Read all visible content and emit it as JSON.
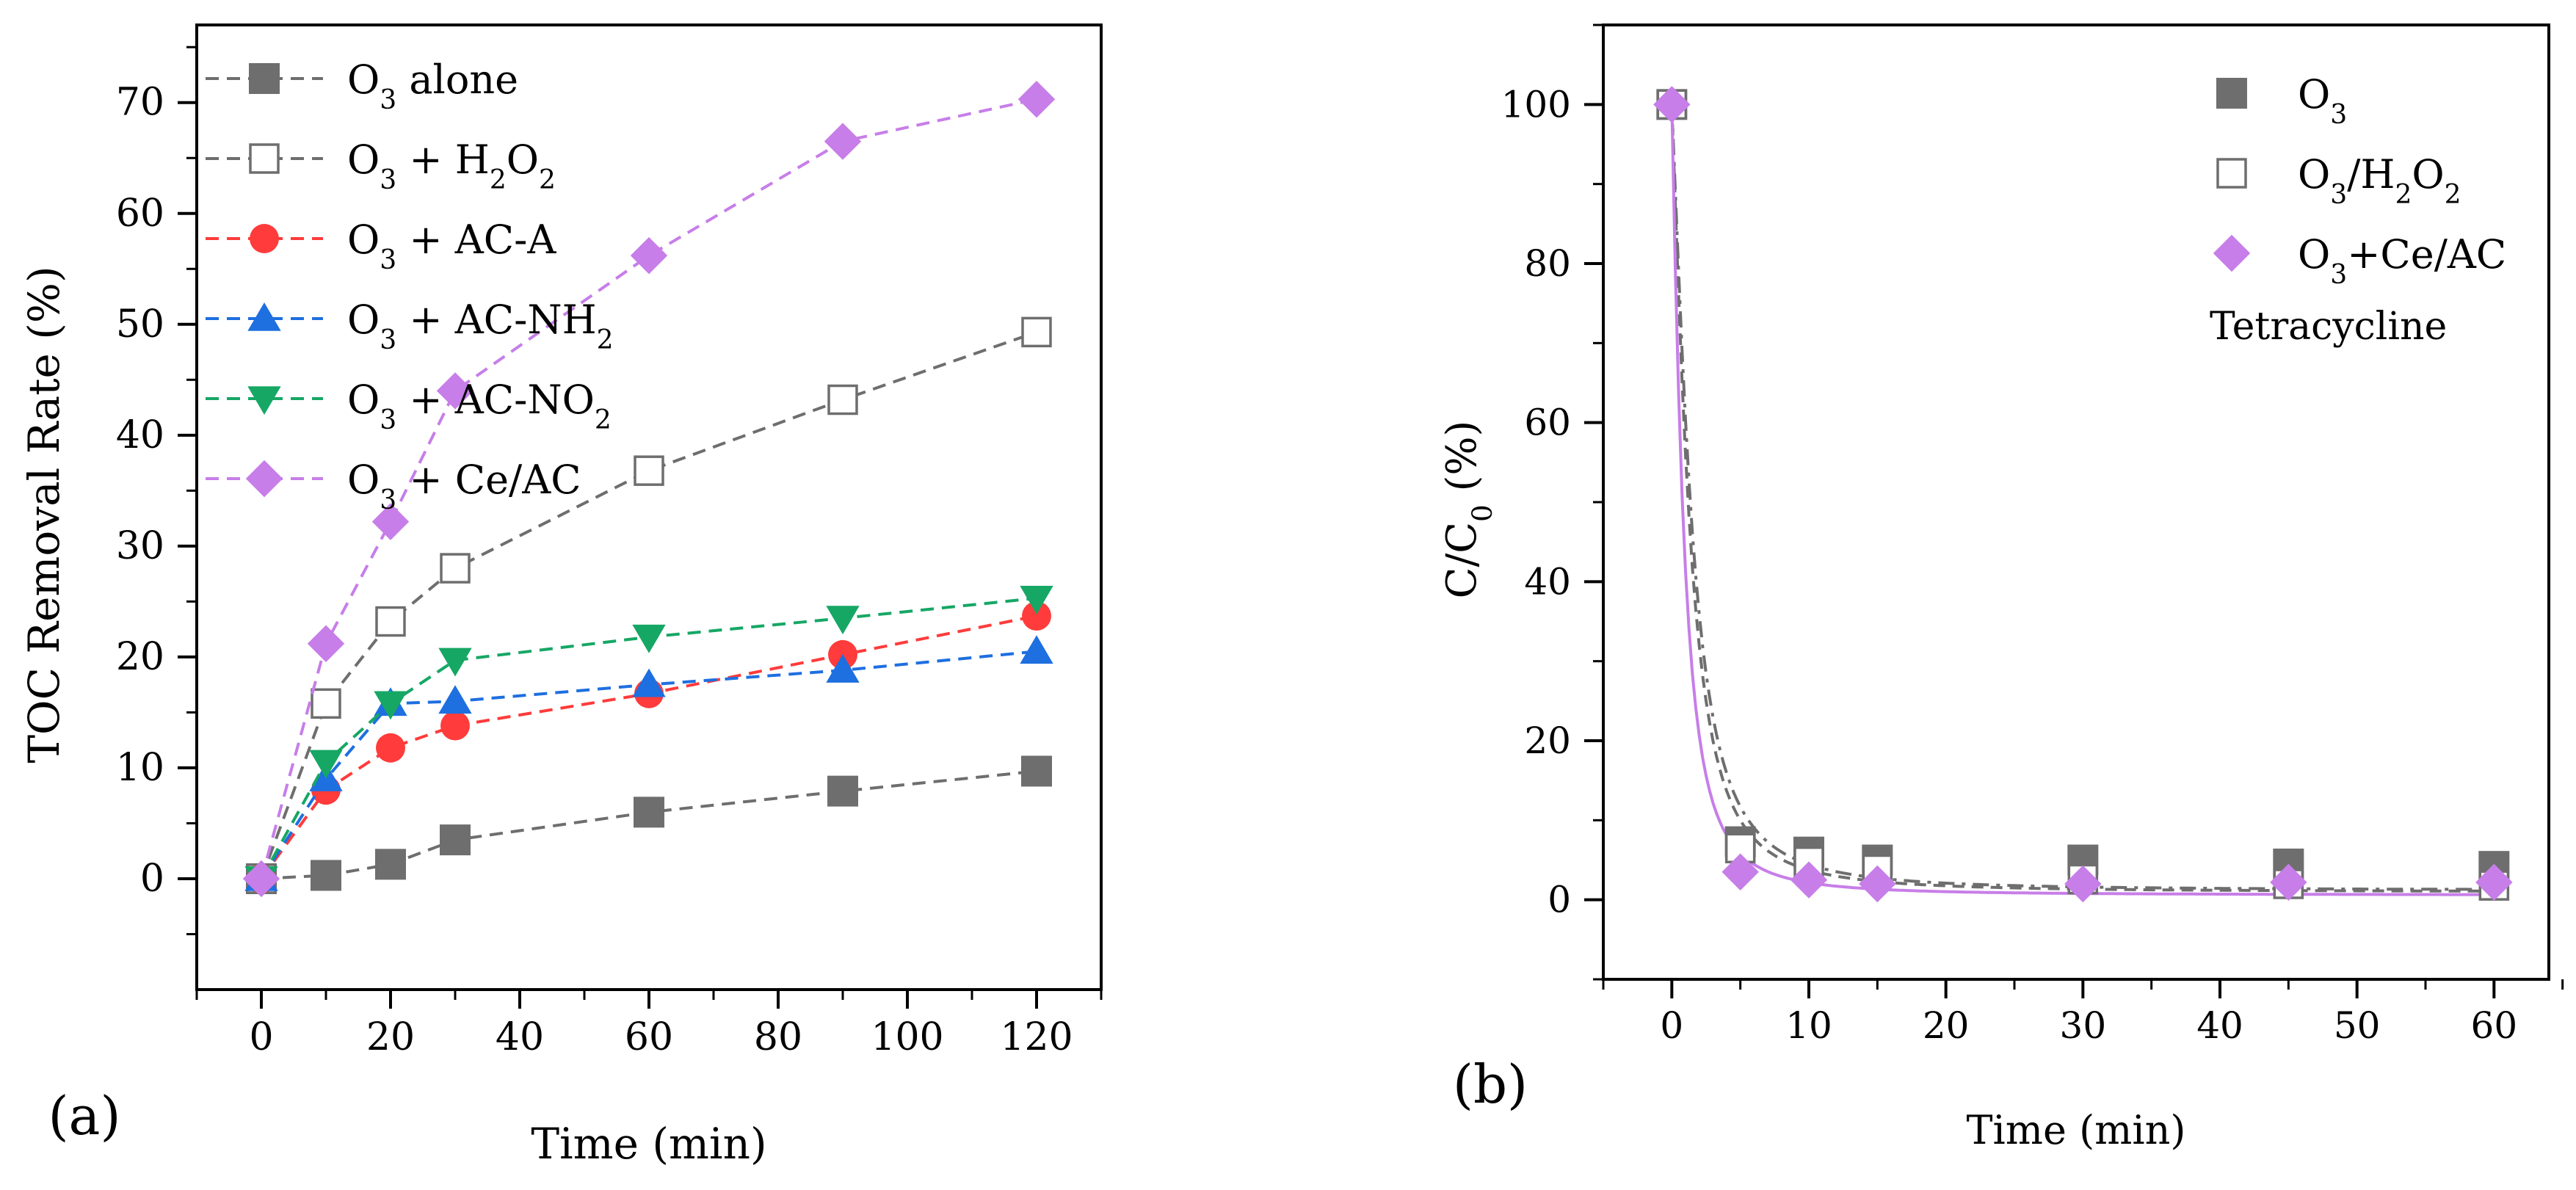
{
  "chart_data": [
    {
      "type": "line",
      "panel_label": "(a)",
      "xlabel": "Time (min)",
      "ylabel": "TOC Removal Rate (%)",
      "xlim": [
        -10,
        130
      ],
      "ylim": [
        -10,
        77
      ],
      "xticks": [
        0,
        20,
        40,
        60,
        80,
        100,
        120
      ],
      "yticks": [
        0,
        10,
        20,
        30,
        40,
        50,
        60,
        70
      ],
      "legend_position": "top-left",
      "series": [
        {
          "name": "O₃ alone",
          "name_main": "O",
          "name_sub": "3",
          "name_rest": " alone",
          "name_sub2": "",
          "name_rest2": "",
          "color": "#6e6e6e",
          "marker": "square-filled",
          "x": [
            0,
            10,
            20,
            30,
            60,
            90,
            120
          ],
          "y": [
            0,
            0.3,
            1.3,
            3.5,
            6.0,
            7.9,
            9.7
          ]
        },
        {
          "name": "O₃ + H₂O₂",
          "name_main": "O",
          "name_sub": "3",
          "name_rest": " + H",
          "name_sub2": "2",
          "name_rest2": "O",
          "name_sub3": "2",
          "color": "#6e6e6e",
          "marker": "square-open",
          "x": [
            0,
            10,
            20,
            30,
            60,
            90,
            120
          ],
          "y": [
            0,
            15.8,
            23.2,
            28.0,
            36.8,
            43.2,
            49.3
          ]
        },
        {
          "name": "O₃ + AC-A",
          "name_main": "O",
          "name_sub": "3",
          "name_rest": " + AC-A",
          "name_sub2": "",
          "name_rest2": "",
          "color": "#ff3b3b",
          "marker": "circle",
          "x": [
            0,
            10,
            20,
            30,
            60,
            90,
            120
          ],
          "y": [
            0,
            8.0,
            11.8,
            13.8,
            16.7,
            20.2,
            23.7
          ]
        },
        {
          "name": "O₃ + AC-NH₂",
          "name_main": "O",
          "name_sub": "3",
          "name_rest": " + AC-NH",
          "name_sub2": "2",
          "name_rest2": "",
          "color": "#1e6fe0",
          "marker": "triangle-up",
          "x": [
            0,
            10,
            20,
            30,
            60,
            90,
            120
          ],
          "y": [
            0,
            9.0,
            15.8,
            16.0,
            17.5,
            18.8,
            20.5
          ]
        },
        {
          "name": "O₃ + AC-NO₂",
          "name_main": "O",
          "name_sub": "3",
          "name_rest": " + AC-NO",
          "name_sub2": "2",
          "name_rest2": "",
          "color": "#16a765",
          "marker": "triangle-down",
          "x": [
            0,
            10,
            20,
            30,
            60,
            90,
            120
          ],
          "y": [
            0,
            10.5,
            15.8,
            19.7,
            21.8,
            23.5,
            25.3
          ]
        },
        {
          "name": "O₃ + Ce/AC",
          "name_main": "O",
          "name_sub": "3",
          "name_rest": " + Ce/AC",
          "name_sub2": "",
          "name_rest2": "",
          "color": "#c77ee8",
          "marker": "diamond",
          "x": [
            0,
            10,
            20,
            30,
            60,
            90,
            120
          ],
          "y": [
            0,
            21.2,
            32.2,
            44.0,
            56.2,
            66.5,
            70.3
          ]
        }
      ]
    },
    {
      "type": "scatter",
      "panel_label": "(b)",
      "xlabel": "Time (min)",
      "ylabel_main": "C/C",
      "ylabel_sub": "0",
      "ylabel_rest": " (%)",
      "ylabel": "C/C₀ (%)",
      "xlim": [
        -5,
        64
      ],
      "ylim": [
        -10,
        110
      ],
      "xticks": [
        0,
        10,
        20,
        30,
        40,
        50,
        60
      ],
      "yticks": [
        0,
        20,
        40,
        60,
        80,
        100
      ],
      "legend_position": "top-right",
      "annotation": "Tetracycline",
      "series": [
        {
          "name": "O₃",
          "name_main": "O",
          "name_sub": "3",
          "name_rest": "",
          "name_sub2": "",
          "name_rest2": "",
          "color": "#6e6e6e",
          "marker": "square-filled",
          "x": [
            0,
            5,
            10,
            15,
            30,
            45,
            60
          ],
          "y": [
            100,
            7.3,
            6.0,
            5.0,
            5.0,
            4.5,
            4.2
          ],
          "fit": "dash-dot"
        },
        {
          "name": "O₃/H₂O₂",
          "name_main": "O",
          "name_sub": "3",
          "name_rest": "/H",
          "name_sub2": "2",
          "name_rest2": "O",
          "name_sub3": "2",
          "color": "#6e6e6e",
          "marker": "square-open",
          "x": [
            0,
            5,
            10,
            15,
            30,
            45,
            60
          ],
          "y": [
            100,
            6.5,
            4.8,
            3.8,
            2.6,
            2.0,
            1.8
          ],
          "fit": "dash"
        },
        {
          "name": "O₃+Ce/AC",
          "name_main": "O",
          "name_sub": "3",
          "name_rest": "+Ce/AC",
          "name_sub2": "",
          "name_rest2": "",
          "color": "#c77ee8",
          "marker": "diamond",
          "x": [
            0,
            5,
            10,
            15,
            30,
            45,
            60
          ],
          "y": [
            100,
            3.5,
            2.5,
            2.0,
            2.0,
            2.2,
            2.2
          ],
          "fit": "solid"
        }
      ]
    }
  ]
}
